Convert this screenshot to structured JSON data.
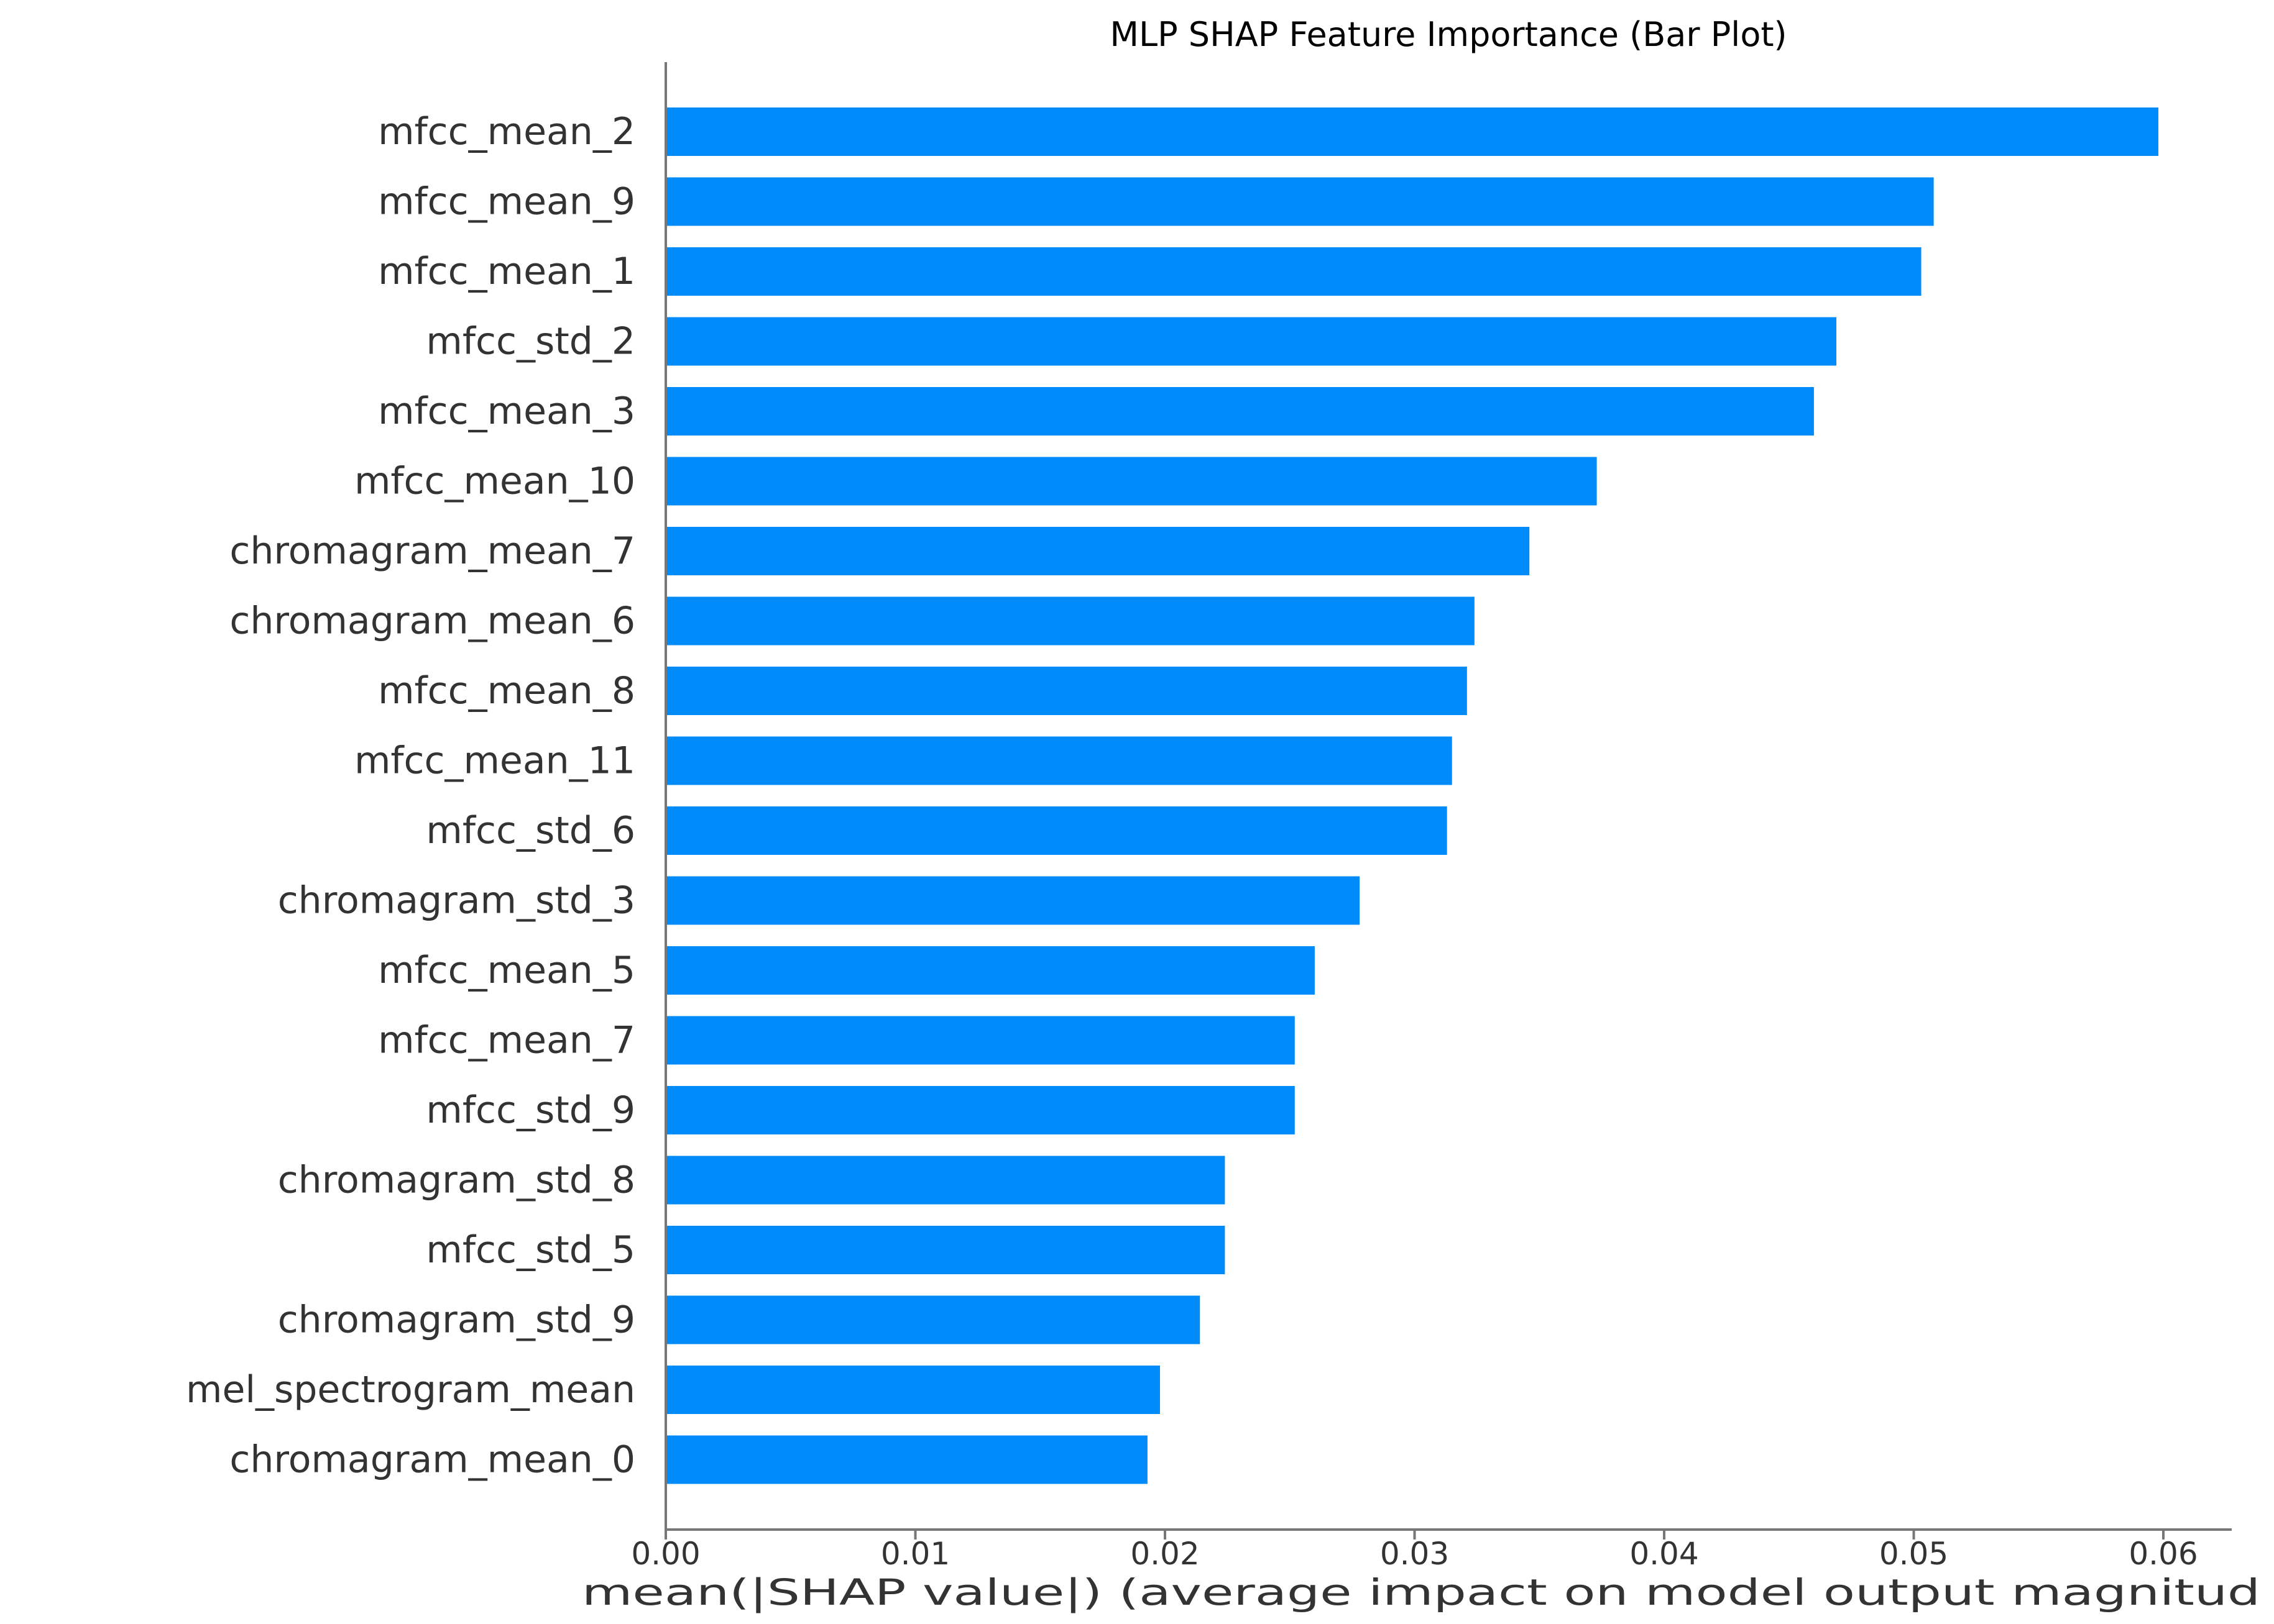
{
  "chart_data": {
    "type": "bar",
    "orientation": "horizontal",
    "title": "MLP SHAP Feature Importance (Bar Plot)",
    "xlabel": "mean(|SHAP value|) (average impact on model output magnitud",
    "ylabel": "",
    "xlim": [
      0,
      0.0627
    ],
    "xticks": [
      0.0,
      0.01,
      0.02,
      0.03,
      0.04,
      0.05,
      0.06
    ],
    "xtick_labels": [
      "0.00",
      "0.01",
      "0.02",
      "0.03",
      "0.04",
      "0.05",
      "0.06"
    ],
    "grid": false,
    "legend": "none",
    "bar_color": "#008bfb",
    "categories": [
      "mfcc_mean_2",
      "mfcc_mean_9",
      "mfcc_mean_1",
      "mfcc_std_2",
      "mfcc_mean_3",
      "mfcc_mean_10",
      "chromagram_mean_7",
      "chromagram_mean_6",
      "mfcc_mean_8",
      "mfcc_mean_11",
      "mfcc_std_6",
      "chromagram_std_3",
      "mfcc_mean_5",
      "mfcc_mean_7",
      "mfcc_std_9",
      "chromagram_std_8",
      "mfcc_std_5",
      "chromagram_std_9",
      "mel_spectrogram_mean",
      "chromagram_mean_0"
    ],
    "values": [
      0.0598,
      0.0508,
      0.0503,
      0.0469,
      0.046,
      0.0373,
      0.0346,
      0.0324,
      0.0321,
      0.0315,
      0.0313,
      0.0278,
      0.026,
      0.0252,
      0.0252,
      0.0224,
      0.0224,
      0.0214,
      0.0198,
      0.0193
    ]
  }
}
